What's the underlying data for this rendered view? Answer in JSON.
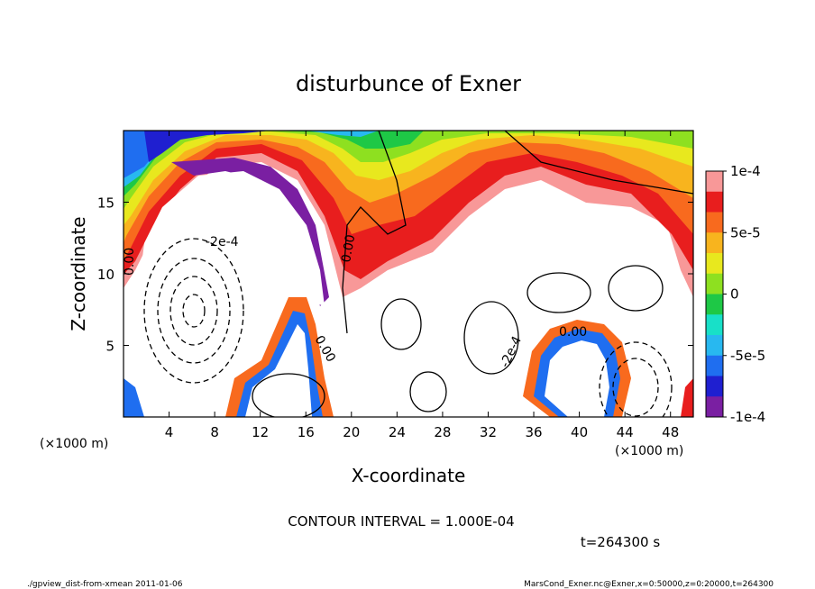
{
  "chart_data": {
    "type": "heatmap",
    "title": "disturbunce of Exner",
    "xlabel": "X-coordinate",
    "ylabel": "Z-coordinate",
    "x_unit": "(×1000 m)",
    "y_unit": "(×1000 m)",
    "xlim": [
      0,
      50
    ],
    "ylim": [
      0,
      20
    ],
    "x_ticks": [
      "4",
      "8",
      "12",
      "16",
      "20",
      "24",
      "28",
      "32",
      "36",
      "40",
      "44",
      "48"
    ],
    "y_ticks": [
      "5",
      "10",
      "15"
    ],
    "colorbar": {
      "min": -0.0001,
      "max": 0.0001,
      "labels": [
        "1e-4",
        "5e-5",
        "0",
        "-5e-5",
        "-1e-4"
      ]
    },
    "contour_labels": [
      "-2e-4",
      "0.00",
      "0.00",
      "0.00",
      "0.00",
      "-2e-4",
      "0.00"
    ],
    "contour_interval_text": "CONTOUR INTERVAL = 1.000E-04",
    "time_text": "t=264300 s"
  },
  "footer": {
    "left": "./gpview_dist-from-xmean  2011-01-06",
    "right": "MarsCond_Exner.nc@Exner,x=0:50000,z=0:20000,t=264300"
  },
  "colors": {
    "colorbar_stops": [
      "#7a1fa2",
      "#1f1fd0",
      "#1f6ef0",
      "#28b8f0",
      "#18e0c8",
      "#1ec846",
      "#8ee020",
      "#e8e81e",
      "#f8b41e",
      "#f86a1e",
      "#e81e1e",
      "#f89898"
    ]
  }
}
